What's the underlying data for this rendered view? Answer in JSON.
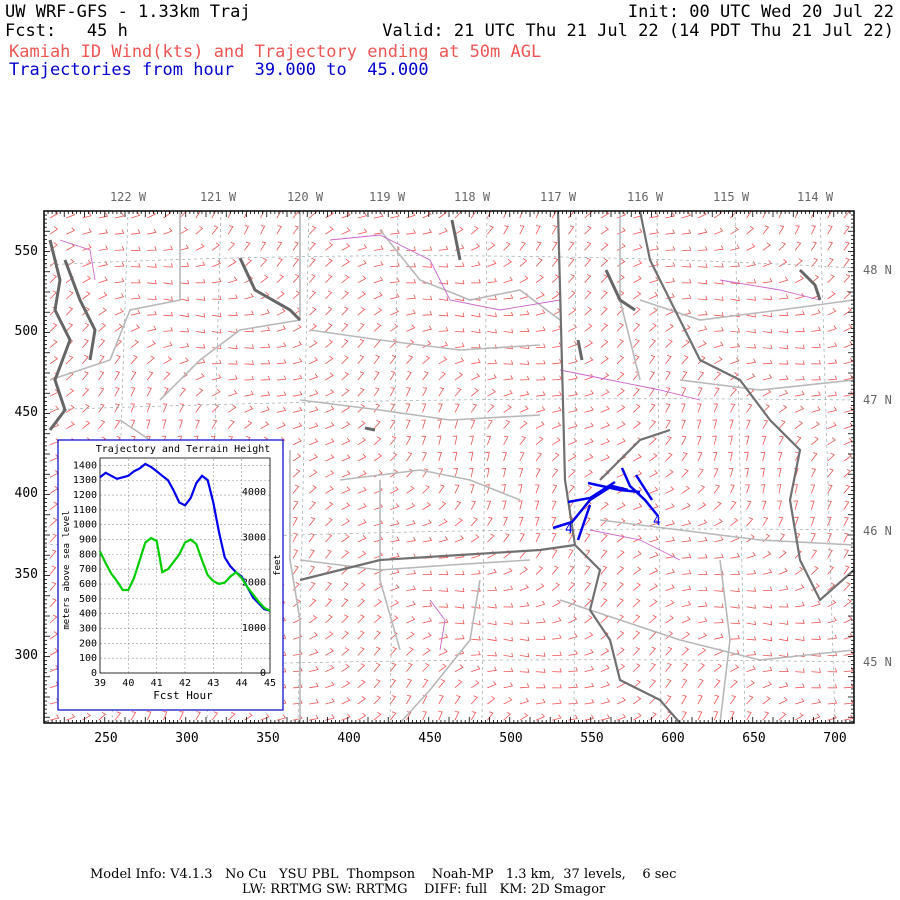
{
  "header": {
    "title": "UW WRF-GFS - 1.33km Traj",
    "init": "Init: 00 UTC Wed 20 Jul 22",
    "fcst": "Fcst:   45 h",
    "valid": "Valid: 21 UTC Thu 21 Jul 22 (14 PDT Thu 21 Jul 22)",
    "subtitle": "Kamiah ID Wind(kts) and Trajectory ending at 50m AGL",
    "traj_range": "Trajectories from hour  39.000 to  45.000"
  },
  "colors": {
    "wind_barbs": "#ee4444",
    "trajectory": "#0000ee",
    "terrain": "#00cc00",
    "roads": "#b0b0b0",
    "coast": "#707070",
    "rivers": "#cc66cc",
    "subtitle": "#ee5555"
  },
  "map": {
    "top_lon_labels": [
      "122 W",
      "121 W",
      "120 W",
      "119 W",
      "118 W",
      "117 W",
      "116 W",
      "115 W",
      "114 W"
    ],
    "right_lat_labels": [
      "48 N",
      "47 N",
      "46 N",
      "45 N"
    ],
    "left_grid_labels": [
      "550",
      "500",
      "450",
      "400",
      "350",
      "300"
    ],
    "bottom_grid_labels": [
      "250",
      "300",
      "350",
      "400",
      "450",
      "500",
      "550",
      "600",
      "650",
      "700"
    ],
    "traj_markers": [
      "4",
      "4",
      "4"
    ]
  },
  "inset": {
    "title": "Trajectory and Terrain Height",
    "ylabel": "meters above sea level",
    "ylabel_right": "feet",
    "xlabel": "Fcst Hour",
    "y_ticks": [
      "1400",
      "1300",
      "1200",
      "1100",
      "1000",
      "900",
      "800",
      "700",
      "600",
      "500",
      "400",
      "300",
      "200",
      "100",
      "0"
    ],
    "y_ticks_right": [
      "4000",
      "3000",
      "2000",
      "1000",
      "0"
    ],
    "x_ticks": [
      "39",
      "40",
      "41",
      "42",
      "43",
      "44",
      "45"
    ]
  },
  "chart_data": {
    "type": "line",
    "title": "Trajectory and Terrain Height",
    "xlabel": "Fcst Hour",
    "ylabel": "meters above sea level",
    "xlim": [
      39,
      45
    ],
    "ylim": [
      0,
      1450
    ],
    "x": [
      39.0,
      39.2,
      39.4,
      39.6,
      39.8,
      40.0,
      40.2,
      40.4,
      40.6,
      40.8,
      41.0,
      41.2,
      41.4,
      41.6,
      41.8,
      42.0,
      42.2,
      42.4,
      42.6,
      42.8,
      43.0,
      43.2,
      43.4,
      43.6,
      43.8,
      44.0,
      44.2,
      44.4,
      44.6,
      44.8,
      45.0
    ],
    "series": [
      {
        "values": [
          1320,
          1350,
          1330,
          1310,
          1320,
          1330,
          1360,
          1380,
          1410,
          1390,
          1360,
          1330,
          1300,
          1230,
          1150,
          1130,
          1180,
          1280,
          1330,
          1300,
          1150,
          950,
          780,
          720,
          680,
          650,
          580,
          510,
          470,
          430,
          420
        ]
      },
      {
        "values": [
          820,
          740,
          670,
          620,
          560,
          560,
          640,
          760,
          880,
          910,
          890,
          680,
          700,
          750,
          800,
          880,
          900,
          870,
          760,
          660,
          620,
          600,
          610,
          650,
          680,
          640,
          580,
          530,
          480,
          440,
          420
        ]
      }
    ]
  },
  "footer": {
    "line1": "Model Info: V4.1.3   No Cu   YSU PBL  Thompson    Noah-MP   1.3 km,  37 levels,    6 sec",
    "line2": "LW: RRTMG SW: RRTMG    DIFF: full   KM: 2D Smagor"
  }
}
